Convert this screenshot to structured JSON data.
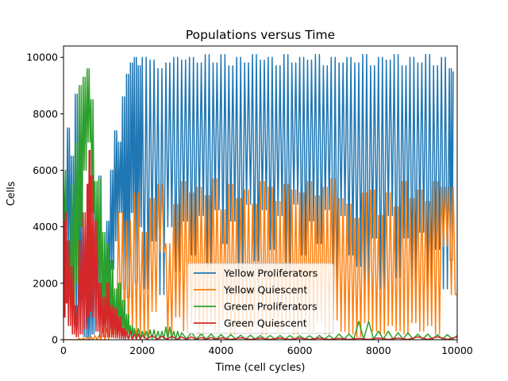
{
  "chart_data": {
    "type": "line",
    "title": "Populations versus Time",
    "xlabel": "Time (cell cycles)",
    "ylabel": "Cells",
    "xlim": [
      0,
      10000
    ],
    "ylim": [
      0,
      10400
    ],
    "xticks": [
      0,
      2000,
      4000,
      6000,
      8000,
      10000
    ],
    "yticks": [
      0,
      2000,
      4000,
      6000,
      8000,
      10000
    ],
    "xtick_labels": [
      "0",
      "2000",
      "4000",
      "6000",
      "8000",
      "10000"
    ],
    "ytick_labels": [
      "0",
      "2000",
      "4000",
      "6000",
      "8000",
      "10000"
    ],
    "grid": false,
    "legend_position": "lower-center",
    "series": [
      {
        "name": "Yellow Proliferators",
        "color": "#1f77b4",
        "x": [
          0,
          100,
          200,
          300,
          400,
          500,
          600,
          700,
          800,
          900,
          1000,
          1100,
          1200,
          1300,
          1400,
          1500,
          1600,
          1700,
          1800,
          1900,
          2000,
          2200,
          2400,
          2600,
          2800,
          3000,
          3200,
          3400,
          3600,
          3800,
          4000,
          4200,
          4400,
          4600,
          4800,
          5000,
          5200,
          5400,
          5600,
          5800,
          6000,
          6200,
          6400,
          6600,
          6800,
          7000,
          7200,
          7400,
          7600,
          7800,
          8000,
          8200,
          8400,
          8600,
          8800,
          9000,
          9200,
          9400,
          9600,
          9800,
          9900
        ],
        "values": [
          5000,
          7500,
          6500,
          8700,
          6000,
          4000,
          1500,
          3000,
          5000,
          5800,
          3500,
          4200,
          6000,
          7400,
          7000,
          8600,
          9400,
          9800,
          10000,
          9700,
          10000,
          9900,
          9600,
          9800,
          10000,
          9900,
          10000,
          9800,
          10100,
          9800,
          10100,
          9700,
          10000,
          9800,
          10100,
          9900,
          10000,
          9700,
          10100,
          9800,
          10000,
          9900,
          10100,
          9700,
          10000,
          9800,
          10000,
          9800,
          10100,
          9700,
          10000,
          9900,
          10100,
          9700,
          10000,
          9800,
          10100,
          9700,
          10000,
          9600,
          9500
        ],
        "lows": [
          3000,
          2500,
          1500,
          500,
          300,
          100,
          0,
          200,
          500,
          1000,
          1000,
          1500,
          2500,
          3500,
          4500,
          1800,
          1500,
          4500,
          2000,
          4000,
          1800,
          3500,
          1600,
          4000,
          2400,
          4200,
          3000,
          4400,
          2600,
          4600,
          3400,
          4200,
          2400,
          4800,
          2800,
          4600,
          3200,
          4400,
          2400,
          4800,
          3000,
          4200,
          3400,
          4600,
          1200,
          4400,
          3000,
          2600,
          1500,
          3600,
          1800,
          4400,
          2200,
          3600,
          2000,
          3800,
          1400,
          3200,
          1800,
          2800,
          2600
        ]
      },
      {
        "name": "Yellow Quiescent",
        "color": "#ff7f0e",
        "x": [
          0,
          200,
          400,
          600,
          800,
          1000,
          1200,
          1400,
          1600,
          1800,
          2000,
          2200,
          2400,
          2600,
          2800,
          3000,
          3200,
          3400,
          3600,
          3800,
          4000,
          4200,
          4400,
          4600,
          4800,
          5000,
          5200,
          5400,
          5600,
          5800,
          6000,
          6200,
          6400,
          6600,
          6800,
          7000,
          7200,
          7400,
          7600,
          7800,
          8000,
          8200,
          8400,
          8600,
          8800,
          9000,
          9200,
          9400,
          9600,
          9800,
          10000
        ],
        "values": [
          0,
          0,
          50,
          100,
          150,
          400,
          1200,
          4500,
          4200,
          5200,
          3800,
          5000,
          5500,
          3400,
          4800,
          5600,
          5200,
          5400,
          5100,
          5700,
          4600,
          5500,
          5000,
          5300,
          4800,
          5600,
          5400,
          4900,
          5500,
          5300,
          5200,
          5600,
          5100,
          5400,
          5700,
          5000,
          4800,
          4300,
          5200,
          5300,
          4400,
          5200,
          4700,
          5600,
          5000,
          5300,
          4900,
          5600,
          5400,
          5400,
          1600
        ],
        "lows": [
          0,
          0,
          0,
          0,
          0,
          0,
          200,
          300,
          300,
          200,
          100,
          1000,
          3100,
          200,
          800,
          300,
          600,
          200,
          500,
          300,
          700,
          200,
          500,
          300,
          600,
          200,
          400,
          300,
          500,
          200,
          400,
          300,
          600,
          200,
          700,
          300,
          200,
          100,
          600,
          300,
          200,
          500,
          300,
          200,
          600,
          300,
          500,
          200,
          3300,
          1600,
          1600
        ]
      },
      {
        "name": "Green Proliferators",
        "color": "#2ca02c",
        "x": [
          0,
          100,
          200,
          300,
          400,
          500,
          600,
          700,
          800,
          900,
          1000,
          1100,
          1200,
          1300,
          1400,
          1500,
          1600,
          1700,
          1800,
          2000,
          2200,
          2400,
          2600,
          2800,
          3000,
          3500,
          4000,
          4500,
          5000,
          5500,
          6000,
          6500,
          7000,
          7500,
          8000,
          8500,
          9000,
          9500,
          10000
        ],
        "values": [
          6000,
          3500,
          5500,
          7000,
          9000,
          9300,
          9600,
          8500,
          5600,
          5700,
          3800,
          3400,
          2800,
          1800,
          2000,
          1400,
          900,
          500,
          400,
          300,
          350,
          300,
          450,
          300,
          250,
          200,
          180,
          160,
          150,
          150,
          140,
          150,
          200,
          650,
          300,
          250,
          200,
          180,
          150
        ],
        "lows": [
          3500,
          1500,
          500,
          2000,
          4000,
          6000,
          7000,
          4500,
          2000,
          1000,
          500,
          300,
          200,
          150,
          100,
          100,
          80,
          60,
          50,
          50,
          40,
          40,
          30,
          30,
          30,
          20,
          20,
          20,
          20,
          20,
          20,
          20,
          20,
          20,
          20,
          20,
          20,
          20,
          20
        ]
      },
      {
        "name": "Green Quiescent",
        "color": "#d62728",
        "x": [
          0,
          50,
          100,
          200,
          300,
          400,
          500,
          600,
          650,
          700,
          800,
          900,
          1000,
          1100,
          1200,
          1300,
          1400,
          1500,
          1600,
          1800,
          2000,
          2500,
          3000,
          3500,
          4000,
          5000,
          6000,
          7000,
          8000,
          9000,
          10000
        ],
        "values": [
          4200,
          4500,
          3500,
          2600,
          1200,
          3500,
          4500,
          5500,
          6700,
          5800,
          4200,
          2000,
          1500,
          2000,
          1200,
          1100,
          800,
          400,
          300,
          200,
          150,
          120,
          100,
          80,
          70,
          60,
          60,
          50,
          60,
          100,
          100
        ],
        "lows": [
          800,
          1300,
          500,
          200,
          100,
          200,
          400,
          800,
          1000,
          800,
          300,
          100,
          100,
          100,
          80,
          60,
          50,
          40,
          30,
          20,
          20,
          20,
          10,
          10,
          10,
          10,
          10,
          10,
          10,
          10,
          10
        ]
      }
    ]
  }
}
